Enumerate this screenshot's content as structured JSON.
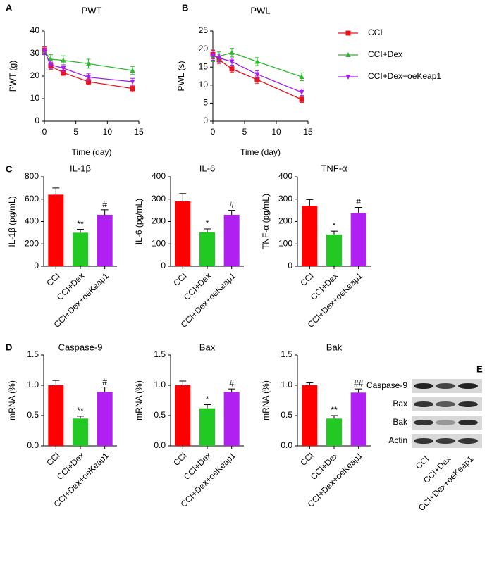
{
  "chart_data": [
    {
      "type": "line",
      "panel_label": "A",
      "title": "PWT",
      "xlabel": "Time (day)",
      "ylabel": "PWT (g)",
      "x": [
        0,
        1,
        3,
        7,
        14
      ],
      "xlim": [
        0,
        15
      ],
      "xticks": [
        0,
        5,
        10,
        15
      ],
      "ylim": [
        0,
        40
      ],
      "yticks": [
        0,
        10,
        20,
        30,
        40
      ],
      "legend": false,
      "series": [
        {
          "name": "CCI",
          "color": "#e8141c",
          "marker": "square",
          "values": [
            31.5,
            24.5,
            21.5,
            17.5,
            14.5
          ],
          "errors": [
            1.5,
            1.5,
            1.2,
            1.3,
            1.4
          ]
        },
        {
          "name": "CCI+Dex",
          "color": "#2cb82c",
          "marker": "triangle-up",
          "values": [
            31,
            27.5,
            27,
            25.5,
            22.5
          ],
          "errors": [
            1.5,
            2,
            2,
            2,
            1.8
          ]
        },
        {
          "name": "CCI+Dex+oeKeap1",
          "color": "#a21ff0",
          "marker": "triangle-down",
          "values": [
            31,
            25,
            23.5,
            19.5,
            17.5
          ],
          "errors": [
            1.5,
            1.6,
            1.5,
            1.5,
            1.5
          ]
        }
      ]
    },
    {
      "type": "line",
      "panel_label": "B",
      "title": "PWL",
      "xlabel": "Time (day)",
      "ylabel": "PWL (s)",
      "x": [
        0,
        1,
        3,
        7,
        14
      ],
      "xlim": [
        0,
        15
      ],
      "xticks": [
        0,
        5,
        10,
        15
      ],
      "ylim": [
        0,
        25
      ],
      "yticks": [
        0,
        5,
        10,
        15,
        20,
        25
      ],
      "legend": "outside right",
      "series": [
        {
          "name": "CCI",
          "color": "#e8141c",
          "marker": "square",
          "values": [
            18.5,
            17,
            14.5,
            11.5,
            6
          ],
          "errors": [
            1.2,
            1,
            1,
            1,
            0.8
          ]
        },
        {
          "name": "CCI+Dex",
          "color": "#2cb82c",
          "marker": "triangle-up",
          "values": [
            18,
            18,
            19,
            16.5,
            12.3
          ],
          "errors": [
            1.5,
            1.2,
            1.2,
            1.1,
            1.1
          ]
        },
        {
          "name": "CCI+Dex+oeKeap1",
          "color": "#a21ff0",
          "marker": "triangle-down",
          "values": [
            18.2,
            17.5,
            16.5,
            13,
            8
          ],
          "errors": [
            1.3,
            1.1,
            1,
            1,
            0.9
          ]
        }
      ]
    },
    {
      "type": "bar",
      "panel_label": "C",
      "title": "IL-1β",
      "ylabel": "IL-1β (pg/mL)",
      "categories": [
        "CCI",
        "CCI+Dex",
        "CCI+Dex+oeKeap1"
      ],
      "values": [
        640,
        300,
        460
      ],
      "errors": [
        60,
        30,
        45
      ],
      "annotations": [
        null,
        "**",
        "#"
      ],
      "colors": [
        "#ff0000",
        "#22c922",
        "#b020f0"
      ],
      "ylim": [
        0,
        800
      ],
      "yticks": [
        0,
        200,
        400,
        600,
        800
      ]
    },
    {
      "type": "bar",
      "title": "IL-6",
      "ylabel": "IL-6 (pg/mL)",
      "categories": [
        "CCI",
        "CCI+Dex",
        "CCI+Dex+oeKeap1"
      ],
      "values": [
        290,
        152,
        230
      ],
      "errors": [
        35,
        15,
        20
      ],
      "annotations": [
        null,
        "*",
        "#"
      ],
      "colors": [
        "#ff0000",
        "#22c922",
        "#b020f0"
      ],
      "ylim": [
        0,
        400
      ],
      "yticks": [
        0,
        100,
        200,
        300,
        400
      ]
    },
    {
      "type": "bar",
      "title": "TNF-α",
      "ylabel": "TNF-α (pg/mL)",
      "categories": [
        "CCI",
        "CCI+Dex",
        "CCI+Dex+oeKeap1"
      ],
      "values": [
        270,
        142,
        238
      ],
      "errors": [
        28,
        15,
        25
      ],
      "annotations": [
        null,
        "*",
        "#"
      ],
      "colors": [
        "#ff0000",
        "#22c922",
        "#b020f0"
      ],
      "ylim": [
        0,
        400
      ],
      "yticks": [
        0,
        100,
        200,
        300,
        400
      ]
    },
    {
      "type": "bar",
      "panel_label": "D",
      "title": "Caspase-9",
      "ylabel": "mRNA (%)",
      "categories": [
        "CCI",
        "CCI+Dex",
        "CCI+Dex+oeKeap1"
      ],
      "values": [
        1.0,
        0.45,
        0.89
      ],
      "errors": [
        0.08,
        0.04,
        0.08
      ],
      "annotations": [
        null,
        "**",
        "#"
      ],
      "colors": [
        "#ff0000",
        "#22c922",
        "#b020f0"
      ],
      "ylim": [
        0,
        1.5
      ],
      "yticks": [
        {
          "value": 0,
          "label": "0.0"
        },
        0.5,
        {
          "value": 1,
          "label": "1.0"
        },
        1.5
      ]
    },
    {
      "type": "bar",
      "title": "Bax",
      "ylabel": "mRNA (%)",
      "categories": [
        "CCI",
        "CCI+Dex",
        "CCI+Dex+oeKeap1"
      ],
      "values": [
        1.0,
        0.62,
        0.89
      ],
      "errors": [
        0.07,
        0.06,
        0.05
      ],
      "annotations": [
        null,
        "*",
        "#"
      ],
      "colors": [
        "#ff0000",
        "#22c922",
        "#b020f0"
      ],
      "ylim": [
        0,
        1.5
      ],
      "yticks": [
        {
          "value": 0,
          "label": "0.0"
        },
        0.5,
        {
          "value": 1,
          "label": "1.0"
        },
        1.5
      ]
    },
    {
      "type": "bar",
      "title": "Bak",
      "ylabel": "mRNA (%)",
      "categories": [
        "CCI",
        "CCI+Dex",
        "CCI+Dex+oeKeap1"
      ],
      "values": [
        1.0,
        0.45,
        0.88
      ],
      "errors": [
        0.04,
        0.05,
        0.06
      ],
      "annotations": [
        null,
        "**",
        "##"
      ],
      "colors": [
        "#ff0000",
        "#22c922",
        "#b020f0"
      ],
      "ylim": [
        0,
        1.5
      ],
      "yticks": [
        {
          "value": 0,
          "label": "0.0"
        },
        0.5,
        {
          "value": 1,
          "label": "1.0"
        },
        1.5
      ]
    }
  ],
  "blot": {
    "panel_label": "E",
    "rows": [
      "Caspase-9",
      "Bax",
      "Bak",
      "Actin"
    ],
    "columns": [
      "CCI",
      "CCI+Dex",
      "CCI+Dex+oeKeap1"
    ]
  }
}
